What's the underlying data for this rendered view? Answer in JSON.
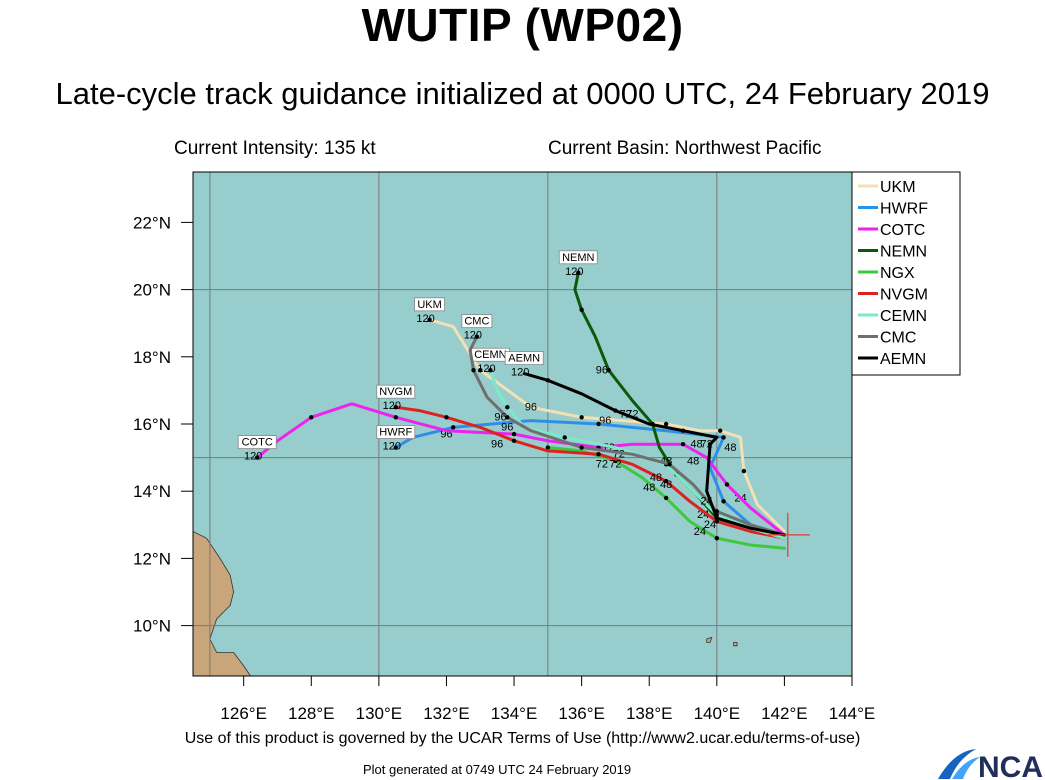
{
  "title": "WUTIP (WP02)",
  "subtitle": "Late-cycle track guidance initialized at 0000 UTC, 24 February 2019",
  "current_intensity": "Current Intensity: 135 kt",
  "current_basin": "Current Basin: Northwest Pacific",
  "terms": "Use of this product is governed by the UCAR Terms of Use (http://www2.ucar.edu/terms-of-use)",
  "plot_generated": "Plot generated at 0749 UTC  24 February 2019",
  "logo_text": "NCAR",
  "colors": {
    "ocean": "#97cdcd",
    "land": "#c8a57a",
    "grid": "#7a7a7a",
    "storm_marker": "#e53935"
  },
  "map": {
    "lon_range": [
      124.5,
      144
    ],
    "lat_range": [
      8.5,
      23.5
    ],
    "x_ticks": [
      {
        "value": 126,
        "label": "126°E"
      },
      {
        "value": 128,
        "label": "128°E"
      },
      {
        "value": 130,
        "label": "130°E"
      },
      {
        "value": 132,
        "label": "132°E"
      },
      {
        "value": 134,
        "label": "134°E"
      },
      {
        "value": 136,
        "label": "136°E"
      },
      {
        "value": 138,
        "label": "138°E"
      },
      {
        "value": 140,
        "label": "140°E"
      },
      {
        "value": 142,
        "label": "142°E"
      },
      {
        "value": 144,
        "label": "144°E"
      }
    ],
    "y_ticks": [
      {
        "value": 10,
        "label": "10°N"
      },
      {
        "value": 12,
        "label": "12°N"
      },
      {
        "value": 14,
        "label": "14°N"
      },
      {
        "value": 16,
        "label": "16°N"
      },
      {
        "value": 18,
        "label": "18°N"
      },
      {
        "value": 20,
        "label": "20°N"
      },
      {
        "value": 22,
        "label": "22°N"
      }
    ],
    "grid_lons": [
      125,
      130,
      135,
      140
    ],
    "grid_lats": [
      10,
      15,
      20
    ],
    "storm_position": {
      "lon": 142.1,
      "lat": 12.7
    }
  },
  "legend": [
    {
      "name": "UKM",
      "color": "#f4e0b4"
    },
    {
      "name": "HWRF",
      "color": "#2f8fe8"
    },
    {
      "name": "COTC",
      "color": "#ee22ee"
    },
    {
      "name": "NEMN",
      "color": "#0a5a0a"
    },
    {
      "name": "NGX",
      "color": "#3ec83e"
    },
    {
      "name": "NVGM",
      "color": "#dd2222"
    },
    {
      "name": "CEMN",
      "color": "#7aeaca"
    },
    {
      "name": "CMC",
      "color": "#6f6f6f"
    },
    {
      "name": "AEMN",
      "color": "#000000"
    }
  ],
  "tracks": [
    {
      "model": "UKM",
      "end_label": "UKM",
      "end_hour": "120",
      "points": [
        [
          142.0,
          12.8
        ],
        [
          141.2,
          13.6
        ],
        [
          140.8,
          14.6
        ],
        [
          140.7,
          15.6
        ],
        [
          140.1,
          15.8
        ],
        [
          139.5,
          15.8
        ],
        [
          138.5,
          16.0
        ],
        [
          137.2,
          16.1
        ],
        [
          136.0,
          16.2
        ],
        [
          134.5,
          16.5
        ],
        [
          133.0,
          17.6
        ],
        [
          132.2,
          18.9
        ],
        [
          131.5,
          19.1
        ]
      ],
      "hour_labels": [
        {
          "text": "24",
          "lon": 140.7,
          "lat": 13.7
        },
        {
          "text": "48",
          "lon": 140.4,
          "lat": 15.2
        },
        {
          "text": "72",
          "lon": 137.5,
          "lat": 16.2
        },
        {
          "text": "96",
          "lon": 136.7,
          "lat": 16.0
        }
      ]
    },
    {
      "model": "HWRF",
      "end_label": "HWRF",
      "end_hour": "120",
      "points": [
        [
          142.0,
          12.7
        ],
        [
          141.0,
          13.0
        ],
        [
          140.2,
          13.7
        ],
        [
          139.8,
          14.7
        ],
        [
          140.2,
          15.6
        ],
        [
          138.5,
          15.8
        ],
        [
          136.5,
          16.0
        ],
        [
          134.5,
          16.1
        ],
        [
          132.2,
          15.9
        ],
        [
          131.0,
          15.6
        ],
        [
          130.5,
          15.3
        ]
      ],
      "hour_labels": [
        {
          "text": "24",
          "lon": 139.6,
          "lat": 13.2
        },
        {
          "text": "48",
          "lon": 139.3,
          "lat": 14.8
        },
        {
          "text": "96",
          "lon": 132.0,
          "lat": 15.6
        }
      ]
    },
    {
      "model": "COTC",
      "end_label": "COTC",
      "end_hour": "120",
      "points": [
        [
          142.0,
          12.7
        ],
        [
          141.0,
          13.5
        ],
        [
          140.3,
          14.2
        ],
        [
          139.7,
          15.0
        ],
        [
          139.0,
          15.4
        ],
        [
          137.5,
          15.4
        ],
        [
          136.5,
          15.3
        ],
        [
          135.0,
          15.5
        ],
        [
          134.0,
          15.7
        ],
        [
          132.0,
          15.8
        ],
        [
          130.5,
          16.2
        ],
        [
          129.2,
          16.6
        ],
        [
          128.0,
          16.2
        ],
        [
          127.0,
          15.5
        ],
        [
          126.4,
          15.0
        ]
      ],
      "hour_labels": [
        {
          "text": "72",
          "lon": 136.8,
          "lat": 15.2
        }
      ]
    },
    {
      "model": "NEMN",
      "end_label": "NEMN",
      "end_hour": "120",
      "points": [
        [
          142.0,
          12.6
        ],
        [
          141.0,
          12.9
        ],
        [
          140.0,
          13.2
        ],
        [
          139.4,
          13.9
        ],
        [
          138.8,
          14.5
        ],
        [
          138.3,
          15.3
        ],
        [
          138.1,
          16.0
        ],
        [
          137.5,
          16.7
        ],
        [
          136.8,
          17.6
        ],
        [
          136.4,
          18.6
        ],
        [
          136.0,
          19.4
        ],
        [
          135.8,
          20.0
        ],
        [
          135.9,
          20.5
        ]
      ],
      "hour_labels": [
        {
          "text": "24",
          "lon": 139.8,
          "lat": 12.9
        },
        {
          "text": "48",
          "lon": 138.5,
          "lat": 14.8
        },
        {
          "text": "72",
          "lon": 137.3,
          "lat": 16.2
        },
        {
          "text": "96",
          "lon": 136.6,
          "lat": 17.5
        }
      ]
    },
    {
      "model": "NGX",
      "end_label": "",
      "end_hour": "",
      "points": [
        [
          142.0,
          12.3
        ],
        [
          141.0,
          12.4
        ],
        [
          140.0,
          12.6
        ],
        [
          139.2,
          13.1
        ],
        [
          138.5,
          13.8
        ],
        [
          137.8,
          14.4
        ],
        [
          137.0,
          14.9
        ],
        [
          136.0,
          15.2
        ],
        [
          135.0,
          15.3
        ]
      ],
      "hour_labels": [
        {
          "text": "24",
          "lon": 139.5,
          "lat": 12.7
        },
        {
          "text": "72",
          "lon": 136.6,
          "lat": 14.7
        }
      ]
    },
    {
      "model": "NVGM",
      "end_label": "NVGM",
      "end_hour": "120",
      "points": [
        [
          142.0,
          12.6
        ],
        [
          141.0,
          12.8
        ],
        [
          140.0,
          13.1
        ],
        [
          139.2,
          13.7
        ],
        [
          138.5,
          14.3
        ],
        [
          137.5,
          14.8
        ],
        [
          136.5,
          15.1
        ],
        [
          135.0,
          15.2
        ],
        [
          134.0,
          15.5
        ],
        [
          133.0,
          15.9
        ],
        [
          132.0,
          16.2
        ],
        [
          131.2,
          16.4
        ],
        [
          130.5,
          16.5
        ]
      ],
      "hour_labels": [
        {
          "text": "48",
          "lon": 138.0,
          "lat": 14.0
        },
        {
          "text": "72",
          "lon": 137.0,
          "lat": 14.7
        },
        {
          "text": "96",
          "lon": 133.5,
          "lat": 15.3
        }
      ]
    },
    {
      "model": "CEMN",
      "end_label": "CEMN",
      "end_hour": "120",
      "points": [
        [
          142.0,
          12.6
        ],
        [
          141.0,
          12.9
        ],
        [
          140.0,
          13.3
        ],
        [
          139.2,
          14.1
        ],
        [
          138.5,
          14.8
        ],
        [
          137.0,
          15.3
        ],
        [
          135.5,
          15.6
        ],
        [
          134.3,
          15.9
        ],
        [
          133.8,
          16.5
        ],
        [
          133.5,
          17.0
        ],
        [
          133.3,
          17.6
        ]
      ],
      "hour_labels": [
        {
          "text": "48",
          "lon": 138.2,
          "lat": 14.3
        },
        {
          "text": "72",
          "lon": 137.1,
          "lat": 15.0
        },
        {
          "text": "96",
          "lon": 133.8,
          "lat": 15.8
        }
      ]
    },
    {
      "model": "CMC",
      "end_label": "CMC",
      "end_hour": "120",
      "points": [
        [
          142.0,
          12.7
        ],
        [
          141.0,
          13.0
        ],
        [
          140.0,
          13.4
        ],
        [
          139.3,
          14.2
        ],
        [
          138.6,
          14.8
        ],
        [
          137.5,
          15.1
        ],
        [
          136.0,
          15.3
        ],
        [
          134.5,
          15.8
        ],
        [
          133.8,
          16.2
        ],
        [
          133.2,
          16.8
        ],
        [
          132.8,
          17.6
        ],
        [
          132.7,
          18.2
        ],
        [
          132.9,
          18.6
        ]
      ],
      "hour_labels": [
        {
          "text": "48",
          "lon": 138.5,
          "lat": 14.1
        },
        {
          "text": "96",
          "lon": 133.6,
          "lat": 16.1
        }
      ]
    },
    {
      "model": "AEMN",
      "end_label": "AEMN",
      "end_hour": "120",
      "points": [
        [
          142.0,
          12.7
        ],
        [
          141.0,
          12.9
        ],
        [
          140.0,
          13.2
        ],
        [
          139.7,
          14.0
        ],
        [
          139.8,
          15.4
        ],
        [
          140.0,
          15.6
        ],
        [
          139.0,
          15.8
        ],
        [
          138.0,
          16.0
        ],
        [
          137.0,
          16.4
        ],
        [
          136.0,
          16.9
        ],
        [
          135.0,
          17.3
        ],
        [
          134.3,
          17.5
        ]
      ],
      "hour_labels": [
        {
          "text": "24",
          "lon": 139.7,
          "lat": 13.6
        },
        {
          "text": "48",
          "lon": 139.4,
          "lat": 15.3
        },
        {
          "text": "72",
          "lon": 139.7,
          "lat": 15.3
        },
        {
          "text": "96",
          "lon": 134.5,
          "lat": 16.4
        }
      ]
    }
  ],
  "land": [
    {
      "name": "luzon-samar",
      "points": [
        [
          124.5,
          12.8
        ],
        [
          124.9,
          12.6
        ],
        [
          125.3,
          12.0
        ],
        [
          125.6,
          11.5
        ],
        [
          125.7,
          11.0
        ],
        [
          125.6,
          10.6
        ],
        [
          125.2,
          10.2
        ],
        [
          125.0,
          9.6
        ],
        [
          125.2,
          9.2
        ],
        [
          125.7,
          9.2
        ],
        [
          126.0,
          8.8
        ],
        [
          126.2,
          8.5
        ],
        [
          124.5,
          8.5
        ]
      ]
    },
    {
      "name": "micronesia-islet-a",
      "points": [
        [
          139.7,
          9.6
        ],
        [
          139.85,
          9.65
        ],
        [
          139.8,
          9.5
        ],
        [
          139.7,
          9.5
        ]
      ]
    },
    {
      "name": "micronesia-islet-b",
      "points": [
        [
          140.5,
          9.5
        ],
        [
          140.6,
          9.5
        ],
        [
          140.6,
          9.4
        ],
        [
          140.5,
          9.4
        ]
      ]
    }
  ]
}
